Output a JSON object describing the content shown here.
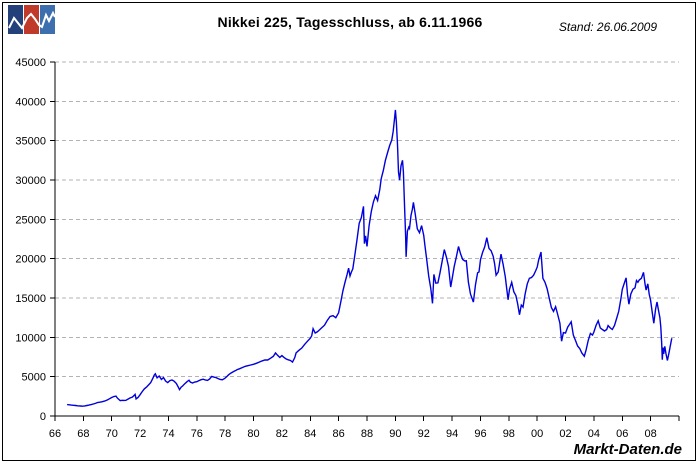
{
  "header": {
    "title": "Nikkei 225, Tagesschluss, ab 6.11.1966",
    "stand": "Stand: 26.06.2009"
  },
  "watermark": "Markt-Daten.de",
  "logo": {
    "name": "markt-daten-logo",
    "colors": [
      "#24407a",
      "#bf3a2b",
      "#3d6fae"
    ],
    "zigzag_color": "#ffffff"
  },
  "chart_data": {
    "type": "line",
    "title": "Nikkei 225, Tagesschluss, ab 6.11.1966",
    "series_name": "Nikkei 225 Tagesschluss",
    "line_color": "#0000dd",
    "grid_color": "#b3b3b3",
    "axis_color": "#000000",
    "grid": "horizontal-dashed",
    "legend": "none",
    "x_range": [
      1966,
      2010
    ],
    "ylim": [
      0,
      45000
    ],
    "y_tick_step": 5000,
    "x_tick_step": 2,
    "y_ticklabels": [
      "0",
      "5000",
      "10000",
      "15000",
      "20000",
      "25000",
      "30000",
      "35000",
      "40000",
      "45000"
    ],
    "x_ticklabels": [
      "66",
      "68",
      "70",
      "72",
      "74",
      "76",
      "78",
      "80",
      "82",
      "84",
      "86",
      "88",
      "90",
      "92",
      "94",
      "96",
      "98",
      "00",
      "02",
      "04",
      "06",
      "08"
    ],
    "points": [
      [
        1966.85,
        1452
      ],
      [
        1967.0,
        1430
      ],
      [
        1967.15,
        1390
      ],
      [
        1967.3,
        1360
      ],
      [
        1967.45,
        1330
      ],
      [
        1967.6,
        1300
      ],
      [
        1967.8,
        1270
      ],
      [
        1967.95,
        1250
      ],
      [
        1968.1,
        1290
      ],
      [
        1968.25,
        1340
      ],
      [
        1968.4,
        1390
      ],
      [
        1968.55,
        1450
      ],
      [
        1968.7,
        1520
      ],
      [
        1968.85,
        1600
      ],
      [
        1969.0,
        1715
      ],
      [
        1969.15,
        1760
      ],
      [
        1969.3,
        1810
      ],
      [
        1969.5,
        1900
      ],
      [
        1969.7,
        2050
      ],
      [
        1969.85,
        2200
      ],
      [
        1970.0,
        2358
      ],
      [
        1970.15,
        2480
      ],
      [
        1970.3,
        2530
      ],
      [
        1970.4,
        2280
      ],
      [
        1970.5,
        2110
      ],
      [
        1970.6,
        1960
      ],
      [
        1970.75,
        1990
      ],
      [
        1970.9,
        1980
      ],
      [
        1971.0,
        2000
      ],
      [
        1971.15,
        2150
      ],
      [
        1971.3,
        2300
      ],
      [
        1971.45,
        2400
      ],
      [
        1971.6,
        2650
      ],
      [
        1971.65,
        2740
      ],
      [
        1971.72,
        2180
      ],
      [
        1971.85,
        2350
      ],
      [
        1972.0,
        2712
      ],
      [
        1972.15,
        3100
      ],
      [
        1972.3,
        3450
      ],
      [
        1972.45,
        3680
      ],
      [
        1972.6,
        3950
      ],
      [
        1972.75,
        4250
      ],
      [
        1972.9,
        4800
      ],
      [
        1973.0,
        5208
      ],
      [
        1973.07,
        5359
      ],
      [
        1973.2,
        4850
      ],
      [
        1973.35,
        5080
      ],
      [
        1973.5,
        4650
      ],
      [
        1973.65,
        4880
      ],
      [
        1973.8,
        4450
      ],
      [
        1973.95,
        4250
      ],
      [
        1974.1,
        4500
      ],
      [
        1974.25,
        4580
      ],
      [
        1974.4,
        4420
      ],
      [
        1974.55,
        4150
      ],
      [
        1974.7,
        3650
      ],
      [
        1974.78,
        3355
      ],
      [
        1974.9,
        3680
      ],
      [
        1975.0,
        3817
      ],
      [
        1975.15,
        4100
      ],
      [
        1975.3,
        4350
      ],
      [
        1975.45,
        4550
      ],
      [
        1975.55,
        4300
      ],
      [
        1975.7,
        4200
      ],
      [
        1975.85,
        4320
      ],
      [
        1976.0,
        4359
      ],
      [
        1976.15,
        4500
      ],
      [
        1976.3,
        4620
      ],
      [
        1976.45,
        4680
      ],
      [
        1976.6,
        4580
      ],
      [
        1976.75,
        4520
      ],
      [
        1976.9,
        4700
      ],
      [
        1977.05,
        5030
      ],
      [
        1977.2,
        4950
      ],
      [
        1977.35,
        4880
      ],
      [
        1977.5,
        4750
      ],
      [
        1977.65,
        4650
      ],
      [
        1977.8,
        4597
      ],
      [
        1977.95,
        4750
      ],
      [
        1978.1,
        5000
      ],
      [
        1978.25,
        5250
      ],
      [
        1978.4,
        5450
      ],
      [
        1978.55,
        5600
      ],
      [
        1978.7,
        5750
      ],
      [
        1978.85,
        5900
      ],
      [
        1979.0,
        6002
      ],
      [
        1979.2,
        6150
      ],
      [
        1979.4,
        6300
      ],
      [
        1979.6,
        6400
      ],
      [
        1979.8,
        6480
      ],
      [
        1980.0,
        6569
      ],
      [
        1980.2,
        6700
      ],
      [
        1980.4,
        6850
      ],
      [
        1980.6,
        7000
      ],
      [
        1980.8,
        7120
      ],
      [
        1981.0,
        7116
      ],
      [
        1981.2,
        7350
      ],
      [
        1981.4,
        7600
      ],
      [
        1981.55,
        8019
      ],
      [
        1981.7,
        7700
      ],
      [
        1981.85,
        7450
      ],
      [
        1982.0,
        7682
      ],
      [
        1982.15,
        7450
      ],
      [
        1982.3,
        7250
      ],
      [
        1982.45,
        7150
      ],
      [
        1982.6,
        7050
      ],
      [
        1982.75,
        6849
      ],
      [
        1982.9,
        7400
      ],
      [
        1983.0,
        8017
      ],
      [
        1983.2,
        8350
      ],
      [
        1983.4,
        8650
      ],
      [
        1983.6,
        9100
      ],
      [
        1983.8,
        9500
      ],
      [
        1984.0,
        9894
      ],
      [
        1984.1,
        10200
      ],
      [
        1984.2,
        11100
      ],
      [
        1984.35,
        10550
      ],
      [
        1984.5,
        10700
      ],
      [
        1984.65,
        10950
      ],
      [
        1984.8,
        11200
      ],
      [
        1985.0,
        11543
      ],
      [
        1985.2,
        12150
      ],
      [
        1985.4,
        12650
      ],
      [
        1985.6,
        12750
      ],
      [
        1985.8,
        12500
      ],
      [
        1986.0,
        13113
      ],
      [
        1986.15,
        14500
      ],
      [
        1986.3,
        15900
      ],
      [
        1986.45,
        17000
      ],
      [
        1986.6,
        18000
      ],
      [
        1986.7,
        18800
      ],
      [
        1986.8,
        17800
      ],
      [
        1986.9,
        18300
      ],
      [
        1987.0,
        18701
      ],
      [
        1987.15,
        20500
      ],
      [
        1987.3,
        22500
      ],
      [
        1987.45,
        24500
      ],
      [
        1987.6,
        25200
      ],
      [
        1987.75,
        26646
      ],
      [
        1987.82,
        21910
      ],
      [
        1987.9,
        22900
      ],
      [
        1988.0,
        21564
      ],
      [
        1988.15,
        24200
      ],
      [
        1988.3,
        26000
      ],
      [
        1988.45,
        27200
      ],
      [
        1988.6,
        28000
      ],
      [
        1988.75,
        27400
      ],
      [
        1988.9,
        28800
      ],
      [
        1989.0,
        30159
      ],
      [
        1989.15,
        31200
      ],
      [
        1989.3,
        32500
      ],
      [
        1989.45,
        33500
      ],
      [
        1989.6,
        34400
      ],
      [
        1989.75,
        35100
      ],
      [
        1989.85,
        36200
      ],
      [
        1989.95,
        38000
      ],
      [
        1990.0,
        38916
      ],
      [
        1990.07,
        37300
      ],
      [
        1990.15,
        34500
      ],
      [
        1990.22,
        31000
      ],
      [
        1990.3,
        29980
      ],
      [
        1990.4,
        31800
      ],
      [
        1990.5,
        32500
      ],
      [
        1990.57,
        31000
      ],
      [
        1990.65,
        26500
      ],
      [
        1990.72,
        23000
      ],
      [
        1990.76,
        20222
      ],
      [
        1990.85,
        23500
      ],
      [
        1990.95,
        24000
      ],
      [
        1991.0,
        23849
      ],
      [
        1991.1,
        25500
      ],
      [
        1991.2,
        26300
      ],
      [
        1991.27,
        27147
      ],
      [
        1991.4,
        25700
      ],
      [
        1991.55,
        23800
      ],
      [
        1991.7,
        23300
      ],
      [
        1991.85,
        24200
      ],
      [
        1992.0,
        22984
      ],
      [
        1992.1,
        21500
      ],
      [
        1992.2,
        20000
      ],
      [
        1992.35,
        17800
      ],
      [
        1992.5,
        16200
      ],
      [
        1992.62,
        14309
      ],
      [
        1992.72,
        18000
      ],
      [
        1992.85,
        16900
      ],
      [
        1993.0,
        16925
      ],
      [
        1993.15,
        18200
      ],
      [
        1993.3,
        19700
      ],
      [
        1993.45,
        21148
      ],
      [
        1993.6,
        20200
      ],
      [
        1993.75,
        19000
      ],
      [
        1993.9,
        16400
      ],
      [
        1994.0,
        17417
      ],
      [
        1994.15,
        19000
      ],
      [
        1994.3,
        20200
      ],
      [
        1994.45,
        21552
      ],
      [
        1994.6,
        20600
      ],
      [
        1994.75,
        19900
      ],
      [
        1994.9,
        19700
      ],
      [
        1995.0,
        19723
      ],
      [
        1995.15,
        17000
      ],
      [
        1995.3,
        15500
      ],
      [
        1995.5,
        14485
      ],
      [
        1995.65,
        16700
      ],
      [
        1995.8,
        18200
      ],
      [
        1995.9,
        18300
      ],
      [
        1996.0,
        19868
      ],
      [
        1996.15,
        20800
      ],
      [
        1996.3,
        21500
      ],
      [
        1996.45,
        22666
      ],
      [
        1996.6,
        21300
      ],
      [
        1996.75,
        21000
      ],
      [
        1996.9,
        20300
      ],
      [
        1997.0,
        19361
      ],
      [
        1997.1,
        17900
      ],
      [
        1997.25,
        18300
      ],
      [
        1997.45,
        20575
      ],
      [
        1997.6,
        19300
      ],
      [
        1997.75,
        17700
      ],
      [
        1997.85,
        16200
      ],
      [
        1997.95,
        14775
      ],
      [
        1998.05,
        16100
      ],
      [
        1998.2,
        17000
      ],
      [
        1998.35,
        15800
      ],
      [
        1998.5,
        15300
      ],
      [
        1998.62,
        14300
      ],
      [
        1998.75,
        12879
      ],
      [
        1998.88,
        14100
      ],
      [
        1999.0,
        13842
      ],
      [
        1999.15,
        15500
      ],
      [
        1999.3,
        16800
      ],
      [
        1999.45,
        17500
      ],
      [
        1999.6,
        17600
      ],
      [
        1999.75,
        17900
      ],
      [
        1999.9,
        18500
      ],
      [
        2000.0,
        18934
      ],
      [
        2000.1,
        19800
      ],
      [
        2000.27,
        20833
      ],
      [
        2000.4,
        17500
      ],
      [
        2000.55,
        17000
      ],
      [
        2000.7,
        16200
      ],
      [
        2000.85,
        15000
      ],
      [
        2001.0,
        13786
      ],
      [
        2001.15,
        13300
      ],
      [
        2001.3,
        13900
      ],
      [
        2001.45,
        12900
      ],
      [
        2001.6,
        11800
      ],
      [
        2001.72,
        9504
      ],
      [
        2001.85,
        10600
      ],
      [
        2002.0,
        10543
      ],
      [
        2002.15,
        11300
      ],
      [
        2002.3,
        11700
      ],
      [
        2002.4,
        11979
      ],
      [
        2002.55,
        10300
      ],
      [
        2002.7,
        9600
      ],
      [
        2002.85,
        8900
      ],
      [
        2003.0,
        8579
      ],
      [
        2003.15,
        8000
      ],
      [
        2003.32,
        7607
      ],
      [
        2003.45,
        8400
      ],
      [
        2003.6,
        9600
      ],
      [
        2003.75,
        10500
      ],
      [
        2003.9,
        10300
      ],
      [
        2004.0,
        10677
      ],
      [
        2004.15,
        11500
      ],
      [
        2004.3,
        12100
      ],
      [
        2004.45,
        11200
      ],
      [
        2004.6,
        11000
      ],
      [
        2004.75,
        10800
      ],
      [
        2004.9,
        11000
      ],
      [
        2005.0,
        11489
      ],
      [
        2005.15,
        11200
      ],
      [
        2005.3,
        11000
      ],
      [
        2005.45,
        11500
      ],
      [
        2005.6,
        12400
      ],
      [
        2005.75,
        13300
      ],
      [
        2005.9,
        14900
      ],
      [
        2006.0,
        16111
      ],
      [
        2006.1,
        16650
      ],
      [
        2006.27,
        17563
      ],
      [
        2006.37,
        15500
      ],
      [
        2006.47,
        14218
      ],
      [
        2006.6,
        15500
      ],
      [
        2006.75,
        16100
      ],
      [
        2006.9,
        16300
      ],
      [
        2007.0,
        17225
      ],
      [
        2007.1,
        17000
      ],
      [
        2007.2,
        17300
      ],
      [
        2007.35,
        17500
      ],
      [
        2007.5,
        18261
      ],
      [
        2007.6,
        16800
      ],
      [
        2007.68,
        16000
      ],
      [
        2007.8,
        16800
      ],
      [
        2007.9,
        15500
      ],
      [
        2008.0,
        14691
      ],
      [
        2008.1,
        13300
      ],
      [
        2008.22,
        11788
      ],
      [
        2008.35,
        13600
      ],
      [
        2008.45,
        14489
      ],
      [
        2008.55,
        13500
      ],
      [
        2008.65,
        12500
      ],
      [
        2008.72,
        11300
      ],
      [
        2008.78,
        9200
      ],
      [
        2008.82,
        7162
      ],
      [
        2008.87,
        8700
      ],
      [
        2008.92,
        7900
      ],
      [
        2009.0,
        8860
      ],
      [
        2009.08,
        7900
      ],
      [
        2009.18,
        7055
      ],
      [
        2009.3,
        8100
      ],
      [
        2009.38,
        8850
      ],
      [
        2009.45,
        9500
      ],
      [
        2009.49,
        9877
      ]
    ]
  }
}
